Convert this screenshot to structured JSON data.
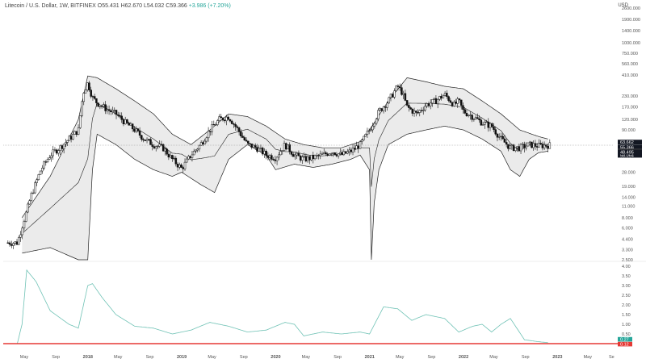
{
  "header": {
    "symbol": "Litecoin / U.S. Dollar, 1W, BITFINEX",
    "open": "O55.431",
    "high": "H62.670",
    "low": "L54.032",
    "close": "C59.366",
    "change": "+3.986 (+7.20%)",
    "currency": "USD"
  },
  "colors": {
    "candle": "#111111",
    "band_fill": "#ebebeb",
    "band_line": "#222222",
    "indicator_line": "#6fc2b5",
    "zero_line": "#e53935",
    "price_tag_bg": "#131722",
    "indicator_tag_bg": "#26a69a"
  },
  "chart_data": [
    {
      "type": "line",
      "title": "",
      "subtitle": "Litecoin / U.S. Dollar, 1W, BITFINEX",
      "scale": "log",
      "y_ticks": [
        "2600.000",
        "1900.000",
        "1400.000",
        "1000.000",
        "750.000",
        "560.000",
        "410.000",
        "230.000",
        "170.000",
        "120.000",
        "90.000",
        "48.495",
        "28.000",
        "19.000",
        "14.000",
        "11.000",
        "8.000",
        "6.000",
        "4.400",
        "3.300",
        "2.500"
      ],
      "x_ticks": [
        "May",
        "Sep",
        "2018",
        "May",
        "Sep",
        "2019",
        "May",
        "Sep",
        "2020",
        "May",
        "Sep",
        "2021",
        "May",
        "Sep",
        "2022",
        "May",
        "Sep",
        "2023",
        "May",
        "Se"
      ],
      "price_tags": [
        "63.662",
        "55.366",
        "04:12h",
        "58.064",
        "48.495"
      ],
      "series": [
        {
          "role": "price",
          "x": [
            2017.25,
            2017.4,
            2017.5,
            2017.6,
            2017.7,
            2017.8,
            2017.9,
            2017.95,
            2018.0,
            2018.05,
            2018.1,
            2018.2,
            2018.3,
            2018.4,
            2018.5,
            2018.6,
            2018.7,
            2018.8,
            2018.9,
            2019.0,
            2019.1,
            2019.2,
            2019.3,
            2019.4,
            2019.5,
            2019.6,
            2019.7,
            2019.8,
            2019.9,
            2020.0,
            2020.1,
            2020.2,
            2020.3,
            2020.4,
            2020.5,
            2020.6,
            2020.7,
            2020.8,
            2020.9,
            2021.0,
            2021.1,
            2021.2,
            2021.3,
            2021.35,
            2021.4,
            2021.5,
            2021.6,
            2021.7,
            2021.8,
            2021.9,
            2021.95,
            2022.0,
            2022.1,
            2022.2,
            2022.3,
            2022.4,
            2022.5,
            2022.6,
            2022.7,
            2022.8,
            2022.9
          ],
          "values": [
            4,
            15,
            30,
            45,
            55,
            70,
            90,
            250,
            330,
            220,
            190,
            160,
            140,
            110,
            90,
            70,
            60,
            55,
            40,
            31,
            45,
            60,
            90,
            120,
            130,
            90,
            60,
            55,
            45,
            42,
            60,
            45,
            40,
            42,
            45,
            50,
            45,
            50,
            60,
            90,
            150,
            200,
            300,
            250,
            170,
            140,
            180,
            200,
            240,
            180,
            200,
            150,
            130,
            110,
            100,
            70,
            55,
            55,
            60,
            58,
            59
          ]
        },
        {
          "role": "band-upper",
          "x": [
            2017.3,
            2017.6,
            2017.9,
            2018.0,
            2018.1,
            2018.3,
            2018.5,
            2018.7,
            2018.9,
            2019.1,
            2019.3,
            2019.5,
            2019.7,
            2019.9,
            2020.1,
            2020.3,
            2020.5,
            2020.7,
            2020.9,
            2021.0,
            2021.2,
            2021.4,
            2021.6,
            2021.8,
            2022.0,
            2022.2,
            2022.4,
            2022.6,
            2022.8,
            2022.9
          ],
          "values": [
            8,
            25,
            120,
            400,
            380,
            280,
            200,
            140,
            80,
            60,
            90,
            140,
            130,
            100,
            70,
            60,
            55,
            55,
            65,
            90,
            200,
            380,
            340,
            300,
            280,
            200,
            140,
            90,
            75,
            70
          ]
        },
        {
          "role": "band-lower",
          "x": [
            2017.3,
            2017.6,
            2017.9,
            2018.0,
            2018.05,
            2018.1,
            2018.3,
            2018.5,
            2018.7,
            2018.9,
            2019.0,
            2019.2,
            2019.35,
            2019.5,
            2019.7,
            2019.9,
            2020.0,
            2020.2,
            2020.4,
            2020.6,
            2020.8,
            2020.9,
            2021.0,
            2021.02,
            2021.05,
            2021.1,
            2021.2,
            2021.4,
            2021.6,
            2021.8,
            2022.0,
            2022.2,
            2022.4,
            2022.5,
            2022.6,
            2022.7,
            2022.8,
            2022.9
          ],
          "values": [
            3,
            3.5,
            2.5,
            2.5,
            30,
            80,
            60,
            40,
            30,
            25,
            28,
            20,
            16,
            40,
            60,
            45,
            30,
            35,
            32,
            35,
            40,
            45,
            30,
            2.5,
            12,
            30,
            60,
            80,
            90,
            100,
            90,
            70,
            50,
            30,
            25,
            40,
            48,
            50
          ]
        },
        {
          "role": "indicator",
          "ylim": [
            0,
            4
          ],
          "y_ticks": [
            "4.00",
            "3.50",
            "3.00",
            "2.50",
            "2.00",
            "1.50",
            "1.00",
            "0.50"
          ],
          "indicator_tags": [
            "0.27",
            "0.12"
          ],
          "x": [
            2017.25,
            2017.3,
            2017.35,
            2017.45,
            2017.6,
            2017.8,
            2017.9,
            2018.0,
            2018.05,
            2018.15,
            2018.3,
            2018.5,
            2018.7,
            2018.9,
            2019.1,
            2019.3,
            2019.5,
            2019.7,
            2019.9,
            2020.1,
            2020.2,
            2020.3,
            2020.5,
            2020.7,
            2020.9,
            2021.0,
            2021.15,
            2021.3,
            2021.45,
            2021.6,
            2021.8,
            2021.95,
            2022.1,
            2022.2,
            2022.3,
            2022.4,
            2022.5,
            2022.65,
            2022.8,
            2022.9
          ],
          "values": [
            0,
            1.0,
            3.8,
            3.2,
            1.7,
            1.0,
            0.8,
            3.0,
            3.1,
            2.4,
            1.5,
            0.9,
            0.8,
            0.5,
            0.7,
            1.1,
            0.9,
            0.6,
            0.7,
            1.1,
            1.0,
            0.4,
            0.6,
            0.5,
            0.6,
            0.5,
            1.9,
            1.8,
            1.2,
            1.5,
            1.3,
            0.6,
            0.9,
            1.0,
            0.6,
            1.0,
            1.3,
            0.2,
            0.1,
            0.05
          ]
        }
      ]
    }
  ]
}
